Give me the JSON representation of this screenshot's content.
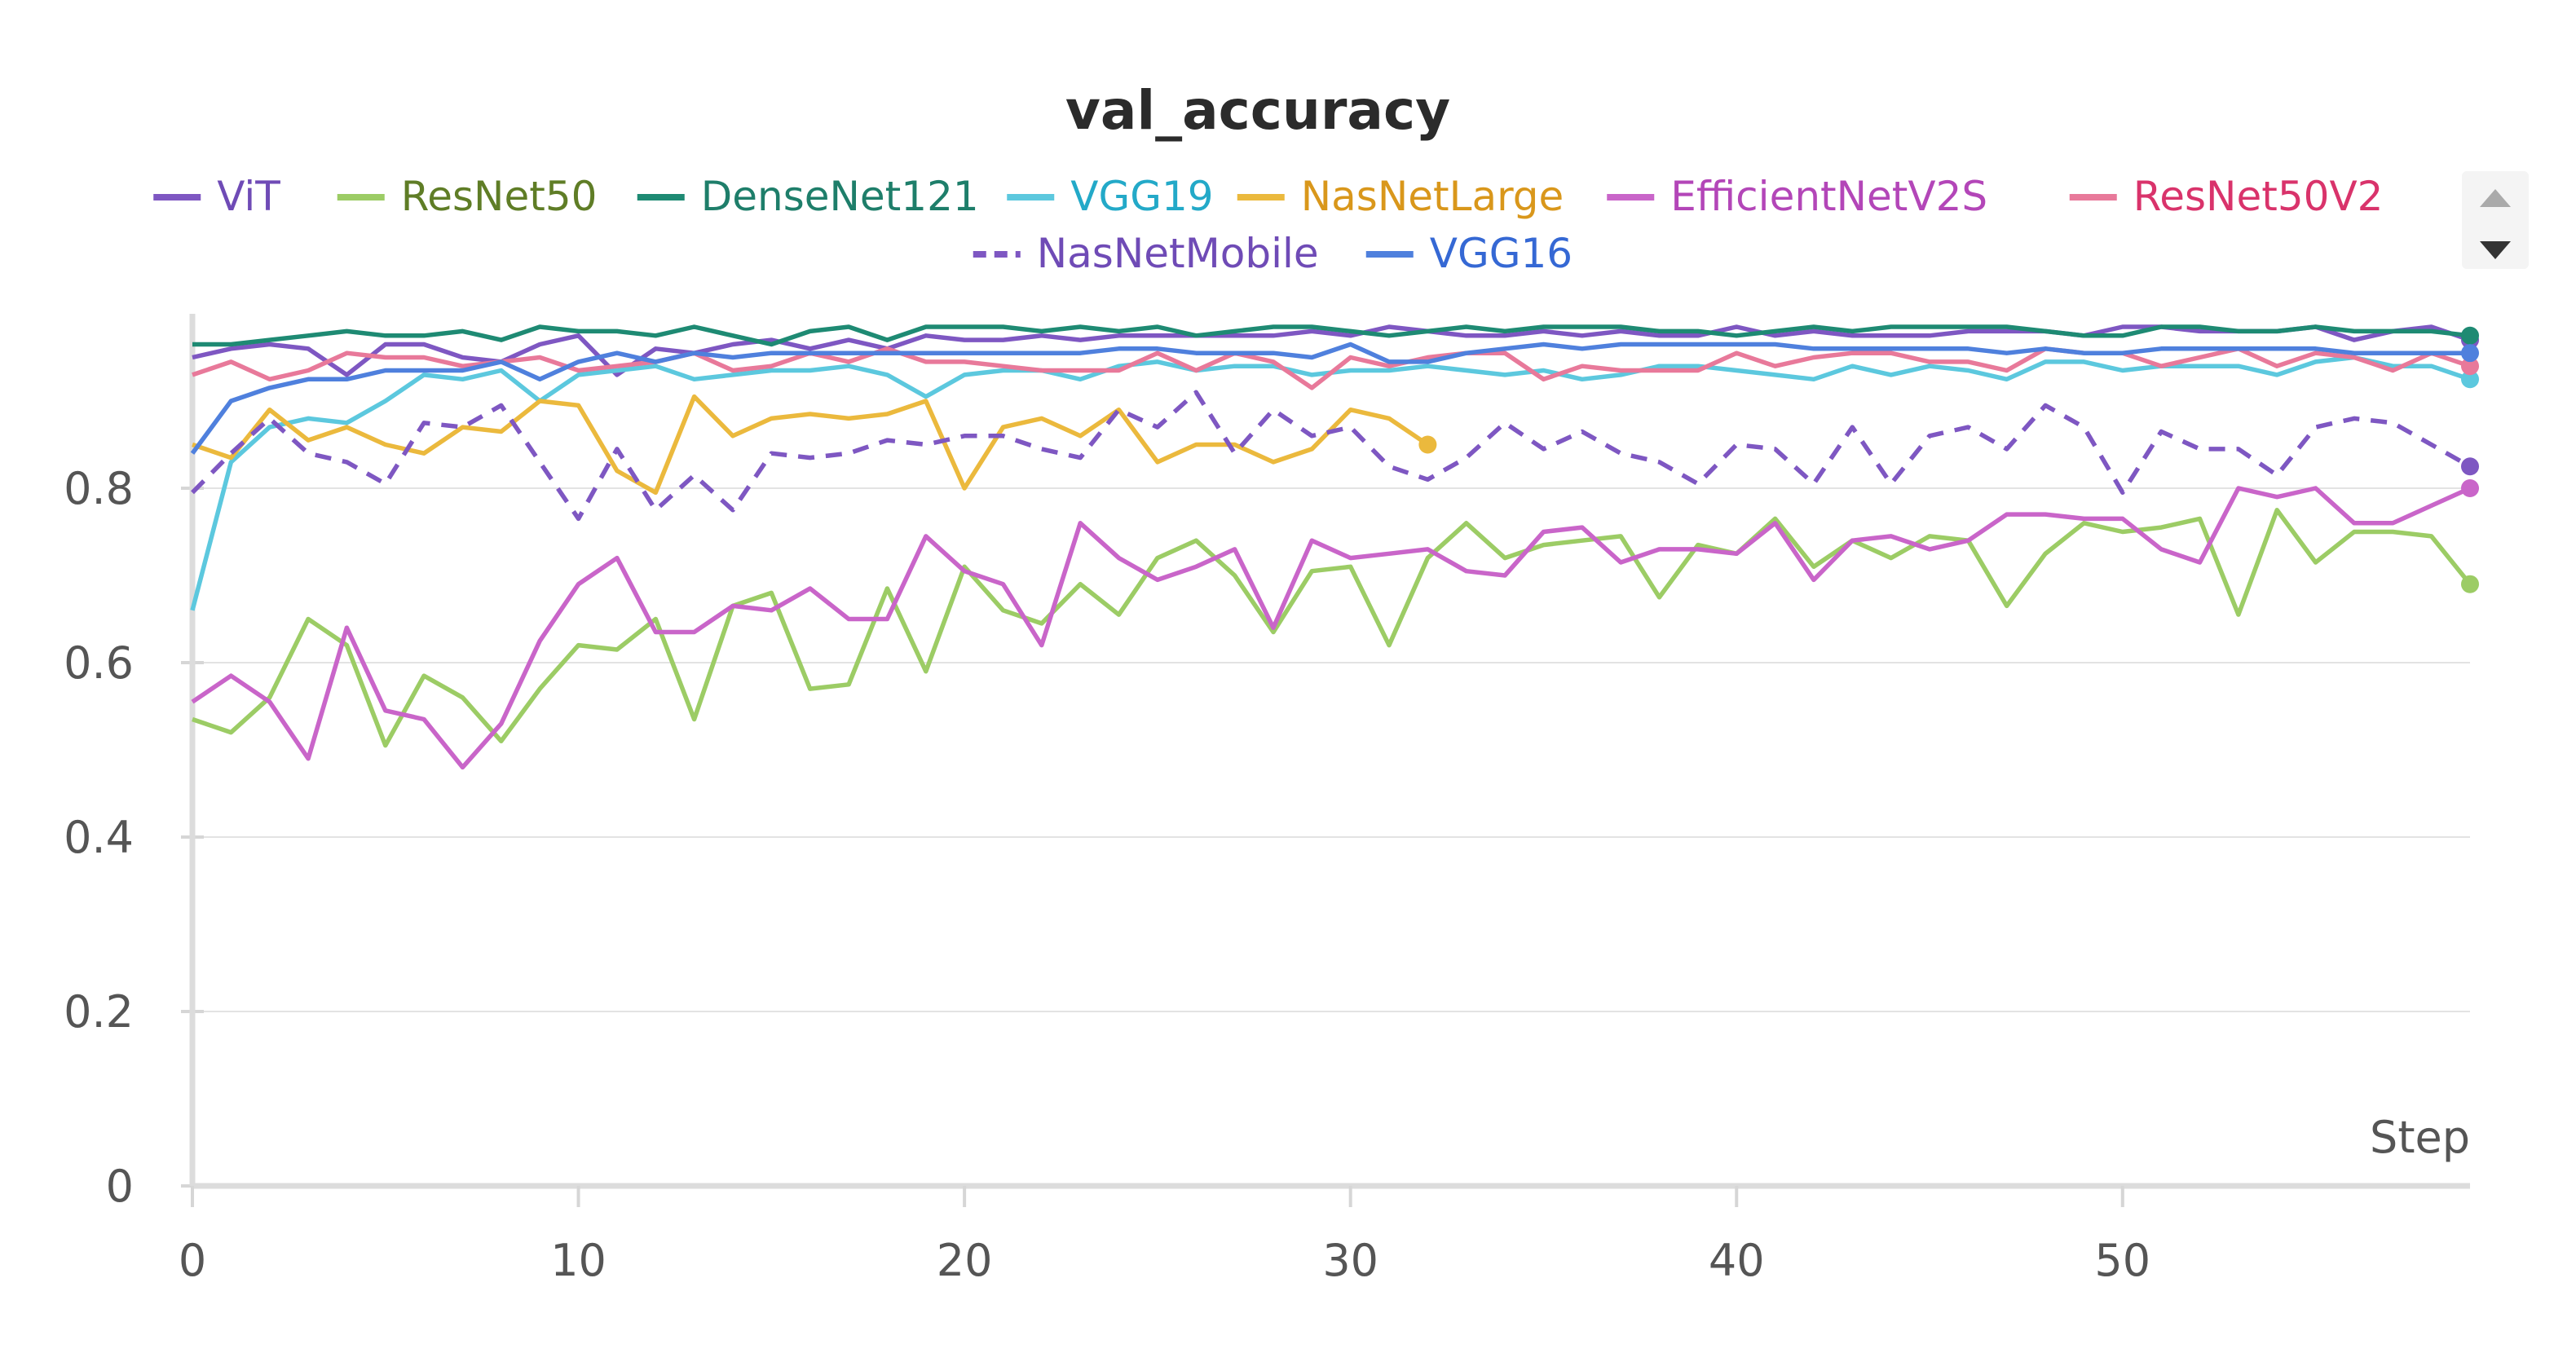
{
  "chart_data": {
    "type": "line",
    "title": "val_accuracy",
    "xlabel": "Step",
    "ylabel": "",
    "xlim": [
      0,
      59
    ],
    "ylim": [
      0,
      1.0
    ],
    "x_ticks": [
      0,
      10,
      20,
      30,
      40,
      50
    ],
    "y_ticks": [
      0,
      0.2,
      0.4,
      0.6,
      0.8
    ],
    "y_tick_labels": [
      "0",
      "0.2",
      "0.4",
      "0.6",
      "0.8"
    ],
    "grid": true,
    "legend_position": "top",
    "series": [
      {
        "name": "ViT",
        "color": "#7e57c2",
        "text_color": "#6f4bb6",
        "dash": false,
        "values": [
          0.95,
          0.96,
          0.965,
          0.96,
          0.93,
          0.965,
          0.965,
          0.95,
          0.945,
          0.965,
          0.975,
          0.93,
          0.96,
          0.955,
          0.965,
          0.97,
          0.96,
          0.97,
          0.96,
          0.975,
          0.97,
          0.97,
          0.975,
          0.97,
          0.975,
          0.975,
          0.975,
          0.975,
          0.975,
          0.98,
          0.975,
          0.985,
          0.98,
          0.975,
          0.975,
          0.98,
          0.975,
          0.98,
          0.975,
          0.975,
          0.985,
          0.975,
          0.98,
          0.975,
          0.975,
          0.975,
          0.98,
          0.98,
          0.98,
          0.975,
          0.985,
          0.985,
          0.98,
          0.98,
          0.98,
          0.985,
          0.97,
          0.98,
          0.985,
          0.97
        ]
      },
      {
        "name": "ResNet50",
        "color": "#9ccc65",
        "text_color": "#5f7d26",
        "dash": false,
        "values": [
          0.535,
          0.52,
          0.56,
          0.65,
          0.62,
          0.505,
          0.585,
          0.56,
          0.51,
          0.57,
          0.62,
          0.615,
          0.65,
          0.535,
          0.665,
          0.68,
          0.57,
          0.575,
          0.685,
          0.59,
          0.71,
          0.66,
          0.645,
          0.69,
          0.655,
          0.72,
          0.74,
          0.7,
          0.635,
          0.705,
          0.71,
          0.62,
          0.72,
          0.76,
          0.72,
          0.735,
          0.74,
          0.745,
          0.675,
          0.735,
          0.725,
          0.765,
          0.71,
          0.74,
          0.72,
          0.745,
          0.74,
          0.665,
          0.725,
          0.76,
          0.75,
          0.755,
          0.765,
          0.655,
          0.775,
          0.715,
          0.75,
          0.75,
          0.745,
          0.69
        ]
      },
      {
        "name": "DenseNet121",
        "color": "#1e8a73",
        "text_color": "#1e7e6a",
        "dash": false,
        "values": [
          0.965,
          0.965,
          0.97,
          0.975,
          0.98,
          0.975,
          0.975,
          0.98,
          0.97,
          0.985,
          0.98,
          0.98,
          0.975,
          0.985,
          0.975,
          0.965,
          0.98,
          0.985,
          0.97,
          0.985,
          0.985,
          0.985,
          0.98,
          0.985,
          0.98,
          0.985,
          0.975,
          0.98,
          0.985,
          0.985,
          0.98,
          0.975,
          0.98,
          0.985,
          0.98,
          0.985,
          0.985,
          0.985,
          0.98,
          0.98,
          0.975,
          0.98,
          0.985,
          0.98,
          0.985,
          0.985,
          0.985,
          0.985,
          0.98,
          0.975,
          0.975,
          0.985,
          0.985,
          0.98,
          0.98,
          0.985,
          0.98,
          0.98,
          0.98,
          0.975
        ]
      },
      {
        "name": "VGG19",
        "color": "#5cc8de",
        "text_color": "#23a9c8",
        "dash": false,
        "values": [
          0.66,
          0.83,
          0.87,
          0.88,
          0.875,
          0.9,
          0.93,
          0.925,
          0.935,
          0.9,
          0.93,
          0.935,
          0.94,
          0.925,
          0.93,
          0.935,
          0.935,
          0.94,
          0.93,
          0.905,
          0.93,
          0.935,
          0.935,
          0.925,
          0.94,
          0.945,
          0.935,
          0.94,
          0.94,
          0.93,
          0.935,
          0.935,
          0.94,
          0.935,
          0.93,
          0.935,
          0.925,
          0.93,
          0.94,
          0.94,
          0.935,
          0.93,
          0.925,
          0.94,
          0.93,
          0.94,
          0.935,
          0.925,
          0.945,
          0.945,
          0.935,
          0.94,
          0.94,
          0.94,
          0.93,
          0.945,
          0.95,
          0.94,
          0.94,
          0.925
        ]
      },
      {
        "name": "NasNetLarge",
        "color": "#ebb93d",
        "text_color": "#d9971b",
        "dash": false,
        "values": [
          0.85,
          0.835,
          0.89,
          0.855,
          0.87,
          0.85,
          0.84,
          0.87,
          0.865,
          0.9,
          0.895,
          0.82,
          0.795,
          0.905,
          0.86,
          0.88,
          0.885,
          0.88,
          0.885,
          0.9,
          0.8,
          0.87,
          0.88,
          0.86,
          0.89,
          0.83,
          0.85,
          0.85,
          0.83,
          0.845,
          0.89,
          0.88,
          0.85
        ]
      },
      {
        "name": "EfficientNetV2S",
        "color": "#c965c9",
        "text_color": "#b346b8",
        "dash": false,
        "values": [
          0.555,
          0.585,
          0.555,
          0.49,
          0.64,
          0.545,
          0.535,
          0.48,
          0.53,
          0.625,
          0.69,
          0.72,
          0.635,
          0.635,
          0.665,
          0.66,
          0.685,
          0.65,
          0.65,
          0.745,
          0.705,
          0.69,
          0.62,
          0.76,
          0.72,
          0.695,
          0.71,
          0.73,
          0.64,
          0.74,
          0.72,
          0.725,
          0.73,
          0.705,
          0.7,
          0.75,
          0.755,
          0.715,
          0.73,
          0.73,
          0.725,
          0.76,
          0.695,
          0.74,
          0.745,
          0.73,
          0.74,
          0.77,
          0.77,
          0.765,
          0.765,
          0.73,
          0.715,
          0.8,
          0.79,
          0.8,
          0.76,
          0.76,
          0.78,
          0.8
        ]
      },
      {
        "name": "ResNet50V2",
        "color": "#e8799a",
        "text_color": "#d9336b",
        "dash": false,
        "values": [
          0.93,
          0.945,
          0.925,
          0.935,
          0.955,
          0.95,
          0.95,
          0.94,
          0.945,
          0.95,
          0.935,
          0.94,
          0.945,
          0.955,
          0.935,
          0.94,
          0.955,
          0.945,
          0.96,
          0.945,
          0.945,
          0.94,
          0.935,
          0.935,
          0.935,
          0.955,
          0.935,
          0.955,
          0.945,
          0.915,
          0.95,
          0.94,
          0.95,
          0.955,
          0.955,
          0.925,
          0.94,
          0.935,
          0.935,
          0.935,
          0.955,
          0.94,
          0.95,
          0.955,
          0.955,
          0.945,
          0.945,
          0.935,
          0.96,
          0.955,
          0.955,
          0.94,
          0.95,
          0.96,
          0.94,
          0.955,
          0.95,
          0.935,
          0.955,
          0.94
        ]
      },
      {
        "name": "NasNetMobile",
        "color": "#7e57c2",
        "text_color": "#6f4bb6",
        "dash": true,
        "values": [
          0.795,
          0.84,
          0.88,
          0.84,
          0.83,
          0.805,
          0.875,
          0.87,
          0.895,
          0.83,
          0.765,
          0.845,
          0.775,
          0.815,
          0.775,
          0.84,
          0.835,
          0.84,
          0.855,
          0.85,
          0.86,
          0.86,
          0.845,
          0.835,
          0.89,
          0.87,
          0.91,
          0.84,
          0.89,
          0.86,
          0.87,
          0.825,
          0.81,
          0.835,
          0.875,
          0.845,
          0.865,
          0.84,
          0.83,
          0.805,
          0.85,
          0.845,
          0.805,
          0.87,
          0.805,
          0.86,
          0.87,
          0.845,
          0.895,
          0.87,
          0.795,
          0.865,
          0.845,
          0.845,
          0.815,
          0.87,
          0.88,
          0.875,
          0.85,
          0.825
        ]
      },
      {
        "name": "VGG16",
        "color": "#4f80dd",
        "text_color": "#3568d4",
        "dash": false,
        "values": [
          0.84,
          0.9,
          0.915,
          0.925,
          0.925,
          0.935,
          0.935,
          0.935,
          0.945,
          0.925,
          0.945,
          0.955,
          0.945,
          0.955,
          0.95,
          0.955,
          0.955,
          0.955,
          0.955,
          0.955,
          0.955,
          0.955,
          0.955,
          0.955,
          0.96,
          0.96,
          0.955,
          0.955,
          0.955,
          0.95,
          0.965,
          0.945,
          0.945,
          0.955,
          0.96,
          0.965,
          0.96,
          0.965,
          0.965,
          0.965,
          0.965,
          0.965,
          0.96,
          0.96,
          0.96,
          0.96,
          0.96,
          0.955,
          0.96,
          0.955,
          0.955,
          0.96,
          0.96,
          0.96,
          0.96,
          0.96,
          0.955,
          0.955,
          0.955,
          0.955
        ]
      }
    ]
  },
  "legend": {
    "scroll_up_label": "▲",
    "scroll_down_label": "▼"
  }
}
